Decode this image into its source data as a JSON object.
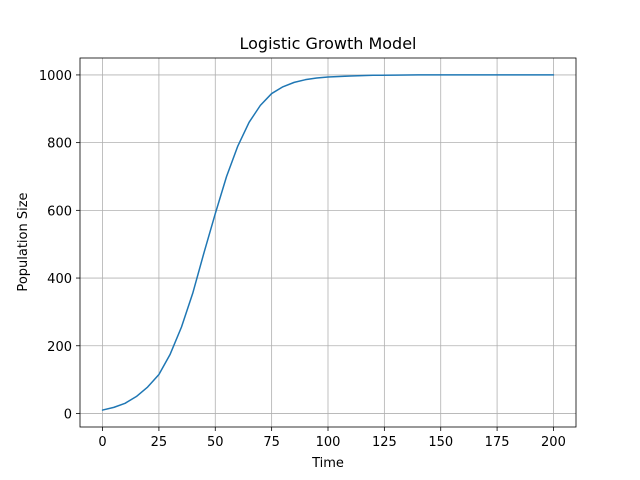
{
  "chart_data": {
    "type": "line",
    "title": "Logistic Growth Model",
    "xlabel": "Time",
    "ylabel": "Population Size",
    "xlim": [
      -10,
      210
    ],
    "ylim": [
      -40,
      1050
    ],
    "xticks": [
      0,
      25,
      50,
      75,
      100,
      125,
      150,
      175,
      200
    ],
    "xtick_labels": [
      "0",
      "25",
      "50",
      "75",
      "100",
      "125",
      "150",
      "175",
      "200"
    ],
    "yticks": [
      0,
      200,
      400,
      600,
      800,
      1000
    ],
    "ytick_labels": [
      "0",
      "200",
      "400",
      "600",
      "800",
      "1000"
    ],
    "grid": true,
    "series": [
      {
        "color": "#1f77b4",
        "x": [
          0,
          5,
          10,
          15,
          20,
          25,
          30,
          35,
          40,
          45,
          50,
          55,
          60,
          65,
          70,
          75,
          80,
          85,
          90,
          95,
          100,
          110,
          120,
          130,
          140,
          150,
          160,
          170,
          180,
          190,
          200
        ],
        "y": [
          10,
          18,
          30,
          50,
          78,
          115,
          175,
          255,
          355,
          475,
          590,
          700,
          790,
          860,
          910,
          945,
          965,
          978,
          986,
          991,
          994,
          997,
          999,
          999.5,
          1000,
          1000,
          1000,
          1000,
          1000,
          1000,
          1000
        ]
      }
    ]
  }
}
